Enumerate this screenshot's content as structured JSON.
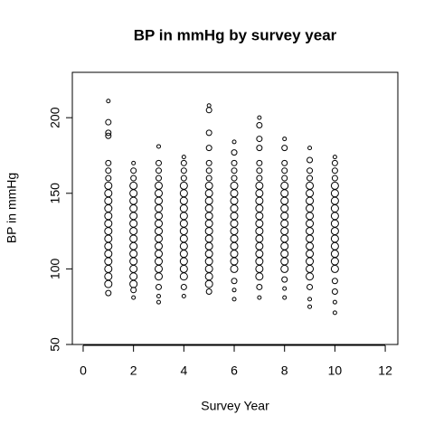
{
  "chart_data": {
    "type": "scatter",
    "title": "BP in mmHg by survey year",
    "x_label": "Survey Year",
    "y_label": "BP in mmHg",
    "x": [
      1,
      1,
      1,
      1,
      1,
      1,
      1,
      1,
      1,
      1,
      1,
      1,
      1,
      1,
      1,
      1,
      1,
      1,
      1,
      1,
      1,
      1,
      2,
      2,
      2,
      2,
      2,
      2,
      2,
      2,
      2,
      2,
      2,
      2,
      2,
      2,
      2,
      2,
      2,
      2,
      2,
      3,
      3,
      3,
      3,
      3,
      3,
      3,
      3,
      3,
      3,
      3,
      3,
      3,
      3,
      3,
      3,
      3,
      3,
      3,
      3,
      4,
      4,
      4,
      4,
      4,
      4,
      4,
      4,
      4,
      4,
      4,
      4,
      4,
      4,
      4,
      4,
      4,
      4,
      4,
      5,
      5,
      5,
      5,
      5,
      5,
      5,
      5,
      5,
      5,
      5,
      5,
      5,
      5,
      5,
      5,
      5,
      5,
      5,
      5,
      5,
      5,
      6,
      6,
      6,
      6,
      6,
      6,
      6,
      6,
      6,
      6,
      6,
      6,
      6,
      6,
      6,
      6,
      6,
      6,
      6,
      6,
      7,
      7,
      7,
      7,
      7,
      7,
      7,
      7,
      7,
      7,
      7,
      7,
      7,
      7,
      7,
      7,
      7,
      7,
      7,
      7,
      7,
      7,
      8,
      8,
      8,
      8,
      8,
      8,
      8,
      8,
      8,
      8,
      8,
      8,
      8,
      8,
      8,
      8,
      8,
      8,
      8,
      8,
      9,
      9,
      9,
      9,
      9,
      9,
      9,
      9,
      9,
      9,
      9,
      9,
      9,
      9,
      9,
      9,
      9,
      9,
      9,
      9,
      10,
      10,
      10,
      10,
      10,
      10,
      10,
      10,
      10,
      10,
      10,
      10,
      10,
      10,
      10,
      10,
      10,
      10,
      10,
      10
    ],
    "y": [
      84,
      90,
      95,
      100,
      105,
      110,
      115,
      120,
      125,
      130,
      135,
      140,
      145,
      150,
      155,
      160,
      165,
      170,
      188,
      190,
      197,
      211,
      81,
      86,
      90,
      95,
      100,
      105,
      110,
      115,
      120,
      125,
      130,
      135,
      140,
      145,
      150,
      155,
      160,
      165,
      170,
      78,
      82,
      88,
      95,
      100,
      105,
      110,
      115,
      120,
      125,
      130,
      135,
      140,
      145,
      150,
      155,
      160,
      165,
      170,
      181,
      82,
      88,
      95,
      100,
      105,
      110,
      115,
      120,
      125,
      130,
      135,
      140,
      145,
      150,
      155,
      160,
      165,
      170,
      174,
      85,
      90,
      95,
      100,
      105,
      110,
      115,
      120,
      125,
      130,
      135,
      140,
      145,
      150,
      155,
      160,
      165,
      170,
      180,
      190,
      205,
      208,
      80,
      86,
      92,
      100,
      105,
      110,
      115,
      120,
      125,
      130,
      135,
      140,
      145,
      150,
      155,
      160,
      165,
      170,
      177,
      184,
      81,
      88,
      95,
      100,
      105,
      110,
      115,
      120,
      125,
      130,
      135,
      140,
      145,
      150,
      155,
      160,
      165,
      170,
      180,
      186,
      195,
      200,
      81,
      87,
      93,
      100,
      105,
      110,
      115,
      120,
      125,
      130,
      135,
      140,
      145,
      150,
      155,
      160,
      165,
      170,
      180,
      186,
      75,
      80,
      88,
      95,
      100,
      105,
      110,
      115,
      120,
      125,
      130,
      135,
      140,
      145,
      150,
      155,
      160,
      165,
      172,
      180,
      71,
      78,
      85,
      92,
      100,
      105,
      110,
      115,
      120,
      125,
      130,
      135,
      140,
      145,
      150,
      155,
      160,
      165,
      170,
      174
    ],
    "sizes": [
      1.5,
      2,
      2,
      2,
      2,
      2,
      2,
      2,
      2,
      2,
      2,
      2,
      2,
      2,
      2,
      1.5,
      1.5,
      1.5,
      1.5,
      1.5,
      1.5,
      1,
      1,
      1.5,
      2,
      2,
      2,
      2,
      2,
      2,
      2,
      2,
      2,
      2,
      2,
      2,
      2,
      2,
      1.5,
      1.5,
      1,
      1,
      1,
      1.5,
      2,
      2,
      2,
      2,
      2,
      2,
      2,
      2,
      2,
      2,
      2,
      2,
      2,
      1.5,
      1.5,
      1.5,
      1,
      1,
      1.5,
      2,
      2,
      2,
      2,
      2,
      2,
      2,
      2,
      2,
      2,
      2,
      2,
      2,
      1.5,
      1.5,
      1.5,
      1,
      1.5,
      2,
      2,
      2,
      2,
      2,
      2,
      2,
      2,
      2,
      2,
      2,
      2,
      2,
      2,
      1.5,
      1.5,
      1.5,
      1.5,
      1.5,
      1.5,
      1,
      1,
      1,
      1.5,
      2,
      2,
      2,
      2,
      2,
      2,
      2,
      2,
      2,
      2,
      2,
      2,
      1.5,
      1.5,
      1.5,
      1.5,
      1,
      1,
      1.5,
      2,
      2,
      2,
      2,
      2,
      2,
      2,
      2,
      2,
      2,
      2,
      2,
      2,
      1.5,
      1.5,
      1.5,
      1.5,
      1.5,
      1.5,
      1,
      1,
      1,
      1.5,
      2,
      2,
      2,
      2,
      2,
      2,
      2,
      2,
      2,
      2,
      2,
      2,
      1.5,
      1.5,
      1.5,
      1.5,
      1,
      1,
      1,
      1.5,
      2,
      2,
      2,
      2,
      2,
      2,
      2,
      2,
      2,
      2,
      2,
      2,
      2,
      1.5,
      1.5,
      1.5,
      1,
      1,
      1,
      1.5,
      1.5,
      2,
      2,
      2,
      2,
      2,
      2,
      2,
      2,
      2,
      2,
      2,
      2,
      1.5,
      1.5,
      1.5,
      1
    ],
    "color": "#000000",
    "xlim": [
      -0.43,
      12.5
    ],
    "xticks": [
      0,
      2,
      4,
      6,
      8,
      10,
      12
    ],
    "ylim": [
      50,
      230
    ],
    "yticks": [
      50,
      100,
      150,
      200
    ],
    "grid": false
  }
}
